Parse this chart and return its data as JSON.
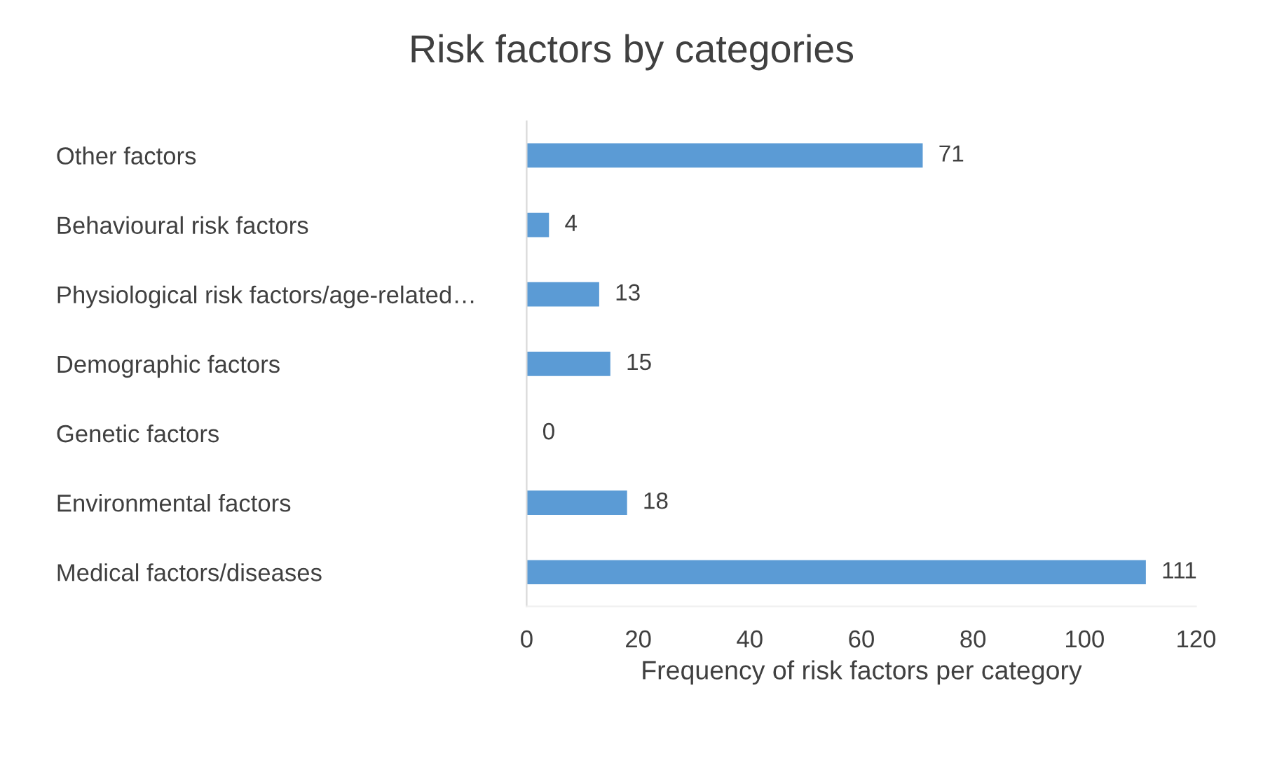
{
  "chart_data": {
    "type": "bar",
    "orientation": "horizontal",
    "title": "Risk factors by categories",
    "xlabel": "Frequency of risk factors per category",
    "categories": [
      "Other factors",
      "Behavioural risk factors",
      "Physiological risk factors/age-related…",
      "Demographic factors",
      "Genetic factors",
      "Environmental factors",
      "Medical factors/diseases"
    ],
    "values": [
      71,
      4,
      13,
      15,
      0,
      18,
      111
    ],
    "color": "#5b9bd5",
    "xlim": [
      0,
      120
    ],
    "xticks": [
      0,
      20,
      40,
      60,
      80,
      100,
      120
    ],
    "data_labels": true,
    "grid": false,
    "legend": false
  }
}
